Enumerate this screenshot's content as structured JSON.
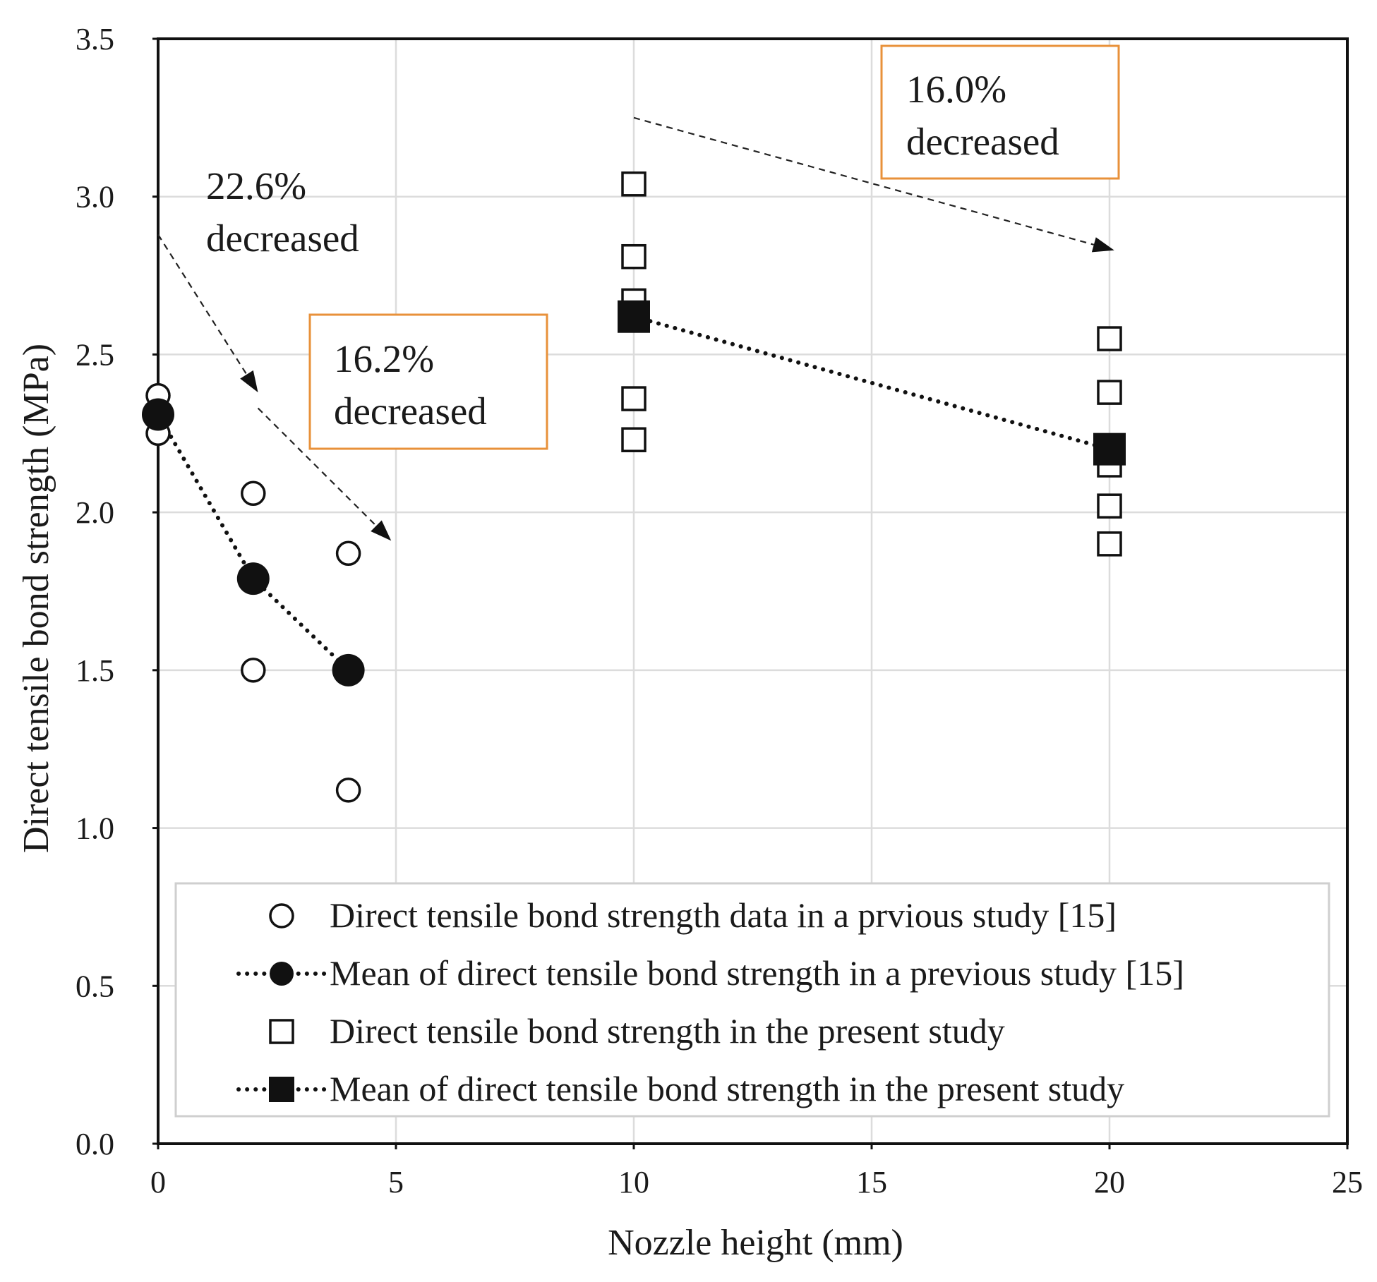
{
  "chart_data": {
    "type": "scatter",
    "xlabel": "Nozzle height (mm)",
    "ylabel": "Direct tensile bond strength (MPa)",
    "xlim": [
      0,
      25
    ],
    "ylim": [
      0,
      3.5
    ],
    "grid": true,
    "x_ticks": [
      {
        "value": 0,
        "label": "0"
      },
      {
        "value": 5,
        "label": "5"
      },
      {
        "value": 10,
        "label": "10"
      },
      {
        "value": 15,
        "label": "15"
      },
      {
        "value": 20,
        "label": "20"
      },
      {
        "value": 25,
        "label": "25"
      }
    ],
    "y_ticks": [
      {
        "value": 0,
        "label": "0.0"
      },
      {
        "value": 0.5,
        "label": "0.5"
      },
      {
        "value": 1.0,
        "label": "1.0"
      },
      {
        "value": 1.5,
        "label": "1.5"
      },
      {
        "value": 2.0,
        "label": "2.0"
      },
      {
        "value": 2.5,
        "label": "2.5"
      },
      {
        "value": 3.0,
        "label": "3.0"
      },
      {
        "value": 3.5,
        "label": "3.5"
      }
    ],
    "series": [
      {
        "name": "Direct tensile bond strength data in a prvious study [15]",
        "marker": "circle-open",
        "line": false,
        "points": [
          [
            0,
            2.37
          ],
          [
            0,
            2.25
          ],
          [
            2,
            2.06
          ],
          [
            2,
            1.5
          ],
          [
            4,
            1.87
          ],
          [
            4,
            1.12
          ]
        ]
      },
      {
        "name": "Mean of direct tensile bond strength in a previous study [15]",
        "marker": "circle-filled",
        "line": "dotted",
        "points": [
          [
            0,
            2.31
          ],
          [
            2,
            1.79
          ],
          [
            4,
            1.5
          ]
        ]
      },
      {
        "name": "Direct tensile bond strength in the present study",
        "marker": "square-open",
        "line": false,
        "points": [
          [
            10,
            3.04
          ],
          [
            10,
            2.81
          ],
          [
            10,
            2.67
          ],
          [
            10,
            2.36
          ],
          [
            10,
            2.23
          ],
          [
            20,
            2.55
          ],
          [
            20,
            2.38
          ],
          [
            20,
            2.15
          ],
          [
            20,
            2.02
          ],
          [
            20,
            1.9
          ]
        ]
      },
      {
        "name": "Mean of direct tensile bond strength in the present study",
        "marker": "square-filled",
        "line": "dotted",
        "points": [
          [
            10,
            2.62
          ],
          [
            20,
            2.2
          ]
        ]
      }
    ],
    "annotations": [
      {
        "lines": [
          "22.6%",
          "decreased"
        ],
        "boxed": false
      },
      {
        "lines": [
          "16.2%",
          "decreased"
        ],
        "boxed": true
      },
      {
        "lines": [
          "16.0%",
          "decreased"
        ],
        "boxed": true
      }
    ],
    "arrows": [
      {
        "from": [
          0,
          2.88
        ],
        "to": [
          2.1,
          2.38
        ]
      },
      {
        "from": [
          2.1,
          2.33
        ],
        "to": [
          4.9,
          1.91
        ]
      },
      {
        "from": [
          10,
          3.25
        ],
        "to": [
          20.1,
          2.83
        ]
      }
    ],
    "legend_position": "bottom",
    "colors": {
      "marker": "#111111",
      "grid": "#dcdcdc",
      "annotation_box": "#e8913a"
    }
  }
}
